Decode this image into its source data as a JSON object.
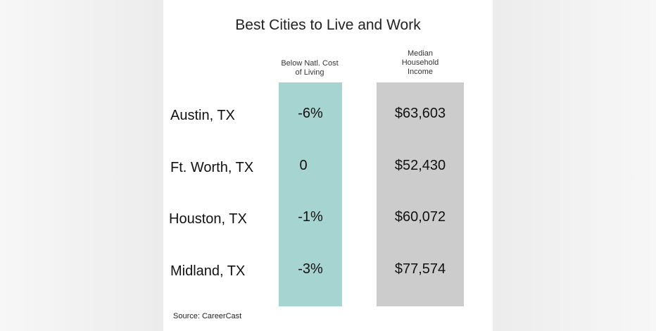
{
  "chart_data": {
    "type": "table",
    "title": "Best Cities to Live and Work",
    "columns": [
      {
        "key": "col",
        "label": "Below Natl. Cost of Living",
        "label_lines": [
          "Below Natl. Cost",
          "of Living"
        ],
        "color": "#a6d4d1"
      },
      {
        "key": "inc",
        "label": "Median Household Income",
        "label_lines": [
          "Median",
          "Household",
          "Income"
        ],
        "color": "#cccccc"
      }
    ],
    "rows": [
      {
        "city": "Austin, TX",
        "col": "-6%",
        "inc": "$63,603"
      },
      {
        "city": "Ft. Worth, TX",
        "col": "0",
        "inc": "$52,430"
      },
      {
        "city": "Houston, TX",
        "col": "-1%",
        "inc": "$60,072"
      },
      {
        "city": "Midland, TX",
        "col": "-3%",
        "inc": "$77,574"
      }
    ],
    "source": "Source:  CareerCast"
  }
}
